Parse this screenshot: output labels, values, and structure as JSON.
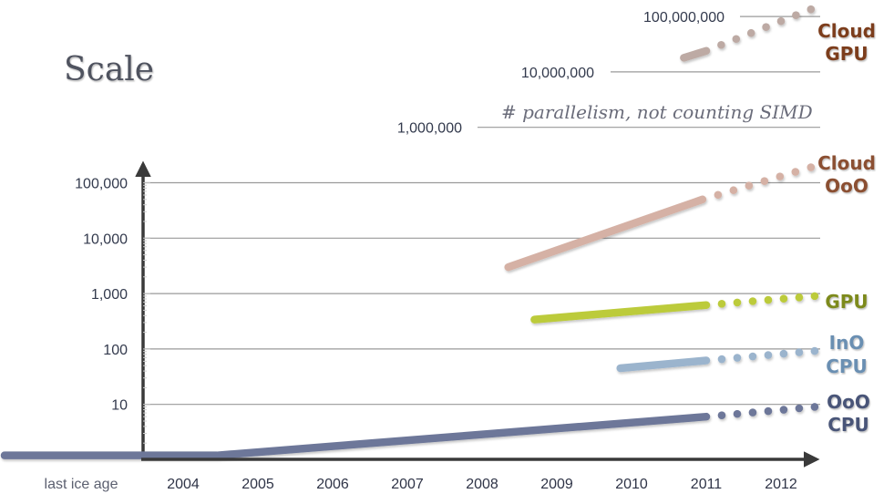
{
  "slide_title": "Scale",
  "chart_data": {
    "type": "line",
    "title": "Scale",
    "annotation": "# parallelism, not counting SIMD",
    "xlabel": "",
    "ylabel": "",
    "yscale": "log",
    "ylim": [
      1,
      100000000
    ],
    "grid": true,
    "x_categories": [
      "last ice age",
      "2004",
      "2005",
      "2006",
      "2007",
      "2008",
      "2009",
      "2010",
      "2011",
      "2012"
    ],
    "x_tick_years": [
      2004,
      2005,
      2006,
      2007,
      2008,
      2009,
      2010,
      2011,
      2012
    ],
    "y_ticks_main": [
      {
        "value": 10,
        "label": "10"
      },
      {
        "value": 100,
        "label": "100"
      },
      {
        "value": 1000,
        "label": "1,000"
      },
      {
        "value": 10000,
        "label": "10,000"
      },
      {
        "value": 100000,
        "label": "100,000"
      }
    ],
    "y_ticks_upper": [
      {
        "value": 1000000,
        "label": "1,000,000"
      },
      {
        "value": 10000000,
        "label": "10,000,000"
      },
      {
        "value": 100000000,
        "label": "100,000,000"
      }
    ],
    "series": [
      {
        "name": "OoO CPU",
        "label_lines": [
          "OoO",
          "CPU"
        ],
        "color": "#6d7799",
        "label_color": "#4a5578",
        "solid": [
          [
            1996.5,
            1.2
          ],
          [
            2004.45,
            1.2
          ],
          [
            2011.0,
            6.0
          ]
        ],
        "projected": [
          [
            2011.0,
            6.0
          ],
          [
            2012.45,
            9.0
          ]
        ]
      },
      {
        "name": "InO CPU",
        "label_lines": [
          "InO",
          "CPU"
        ],
        "color": "#9bb4cd",
        "label_color": "#6b8fb2",
        "solid": [
          [
            2009.85,
            45
          ],
          [
            2011.0,
            62
          ]
        ],
        "projected": [
          [
            2011.0,
            62
          ],
          [
            2012.45,
            92
          ]
        ]
      },
      {
        "name": "GPU",
        "label_lines": [
          "GPU"
        ],
        "color": "#bccb3a",
        "label_color": "#7d8a1e",
        "solid": [
          [
            2008.7,
            340
          ],
          [
            2011.0,
            620
          ]
        ],
        "projected": [
          [
            2011.0,
            620
          ],
          [
            2012.45,
            900
          ]
        ]
      },
      {
        "name": "Cloud OoO",
        "label_lines": [
          "Cloud",
          "OoO"
        ],
        "color": "#d5b1a5",
        "label_color": "#8b4f32",
        "solid": [
          [
            2008.35,
            3000
          ],
          [
            2010.95,
            50000
          ]
        ],
        "projected": [
          [
            2010.95,
            50000
          ],
          [
            2012.4,
            190000
          ]
        ]
      },
      {
        "name": "Cloud GPU",
        "label_lines": [
          "Cloud",
          "GPU"
        ],
        "color": "#bdaaa4",
        "label_color": "#7c3e1c",
        "solid": [
          [
            2010.7,
            18000000
          ],
          [
            2011.0,
            24000000
          ]
        ],
        "projected": [
          [
            2011.0,
            24000000
          ],
          [
            2012.4,
            135000000
          ]
        ]
      }
    ]
  }
}
